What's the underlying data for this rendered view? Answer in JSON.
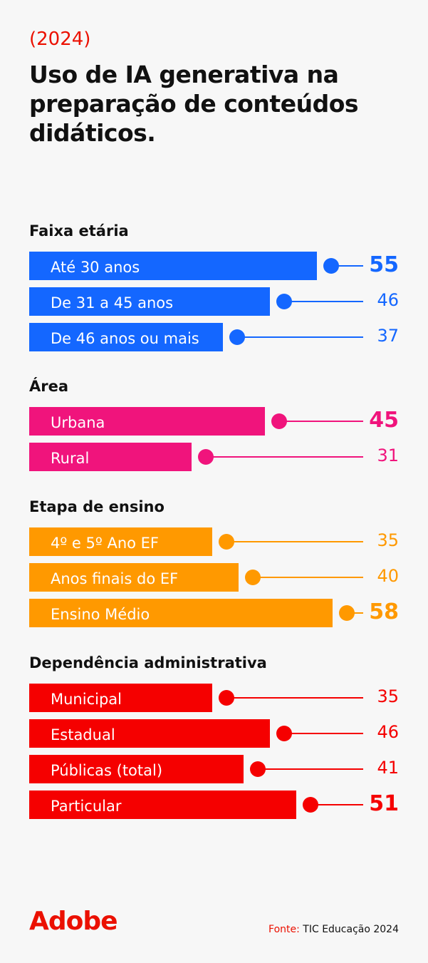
{
  "header": {
    "year": "(2024)",
    "title": "Uso de IA generativa na preparação de conteúdos didáticos."
  },
  "chart_data": {
    "type": "bar",
    "orientation": "horizontal",
    "title": "Uso de IA generativa na preparação de conteúdos didáticos.",
    "groups": [
      {
        "name": "Faixa etária",
        "color": "#1467ff",
        "categories": [
          "Até 30 anos",
          "De 31 a 45 anos",
          "De 46 anos ou mais"
        ],
        "values": [
          55,
          46,
          37
        ]
      },
      {
        "name": "Área",
        "color": "#f0147c",
        "categories": [
          "Urbana",
          "Rural"
        ],
        "values": [
          45,
          31
        ]
      },
      {
        "name": "Etapa de ensino",
        "color": "#ff9900",
        "categories": [
          "4º e 5º Ano EF",
          "Anos finais do EF",
          "Ensino Médio"
        ],
        "values": [
          35,
          40,
          58
        ]
      },
      {
        "name": "Dependência administrativa",
        "color": "#f50000",
        "categories": [
          "Municipal",
          "Estadual",
          "Públicas (total)",
          "Particular"
        ],
        "values": [
          35,
          46,
          41,
          51
        ]
      }
    ]
  },
  "footer": {
    "logo": "Adobe",
    "source_label": "Fonte:",
    "source": "TIC Educação 2024"
  }
}
